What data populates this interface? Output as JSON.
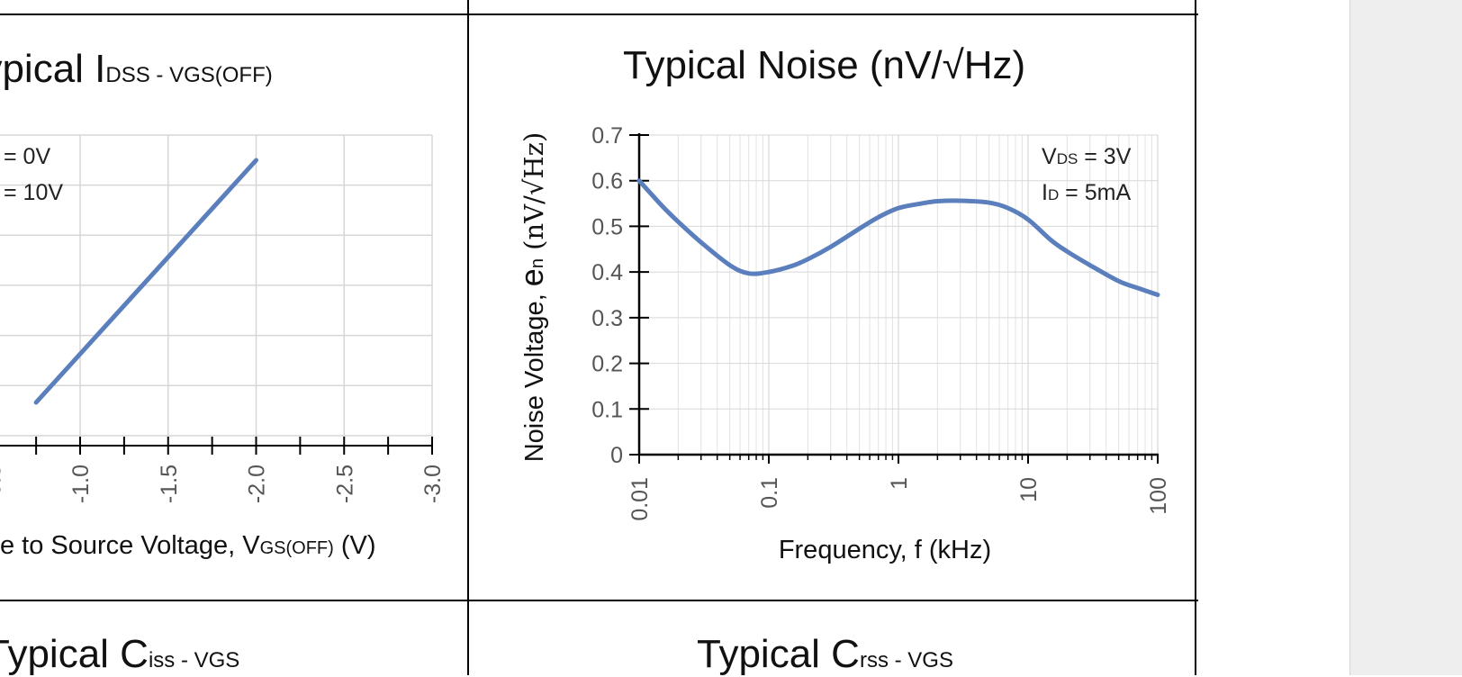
{
  "titles": {
    "idss": {
      "pre": "Typical I",
      "sub1": "DSS",
      "mid": " - V",
      "sub2": "GS(OFF)"
    },
    "noise": "Typical Noise (nV/√Hz)",
    "ciss": {
      "pre": "Typical C",
      "sub1": "iss",
      "mid": " - V",
      "sub2": "GS"
    },
    "crss": {
      "pre": "Typical C",
      "sub1": "rss",
      "mid": " - V",
      "sub2": "GS"
    }
  },
  "idss_panel": {
    "annotations": [
      "= 0V",
      "= 10V"
    ],
    "x_ticks": [
      "-1.0",
      "-1.5",
      "-2.0",
      "-2.5",
      "-3.0"
    ],
    "x_label_pre": "e to Source Voltage, V",
    "x_label_sub": "GS(OFF)",
    "x_label_post": " (V)"
  },
  "chart_data": [
    {
      "type": "line",
      "title": "Typical Noise (nV/√Hz)",
      "xlabel": "Frequency, f (kHz)",
      "ylabel_parts": [
        "Noise Voltage, ",
        "e",
        "n",
        " (nV/√Hz)"
      ],
      "x_scale": "log",
      "xlim": [
        0.01,
        100
      ],
      "ylim": [
        0,
        0.7
      ],
      "x_ticks": [
        "0.01",
        "0.1",
        "1",
        "10",
        "100"
      ],
      "y_ticks": [
        "0",
        "0.1",
        "0.2",
        "0.3",
        "0.4",
        "0.5",
        "0.6",
        "0.7"
      ],
      "grid": true,
      "annotations": [
        {
          "pre": "V",
          "sub": "DS",
          "post": " = 3V"
        },
        {
          "pre": "I",
          "sub": "D",
          "post": " = 5mA"
        }
      ],
      "color": "#5b7fbd",
      "x": [
        0.01,
        0.015,
        0.02,
        0.03,
        0.05,
        0.07,
        0.1,
        0.15,
        0.2,
        0.3,
        0.5,
        0.7,
        1,
        1.5,
        2,
        3,
        5,
        7,
        10,
        15,
        20,
        30,
        50,
        70,
        100
      ],
      "y": [
        0.6,
        0.545,
        0.51,
        0.465,
        0.415,
        0.397,
        0.4,
        0.413,
        0.428,
        0.455,
        0.495,
        0.52,
        0.54,
        0.55,
        0.555,
        0.556,
        0.552,
        0.54,
        0.515,
        0.47,
        0.445,
        0.415,
        0.38,
        0.365,
        0.35
      ]
    },
    {
      "type": "line",
      "title": "Typical IDSS - VGS(OFF)",
      "xlabel": "e to Source Voltage, VGS(OFF) (V)",
      "xlim": [
        0,
        -3.0
      ],
      "grid": true,
      "color": "#5b7fbd",
      "x": [
        -0.75,
        -2.0
      ],
      "y_rel": [
        0.155,
        0.745
      ]
    }
  ]
}
